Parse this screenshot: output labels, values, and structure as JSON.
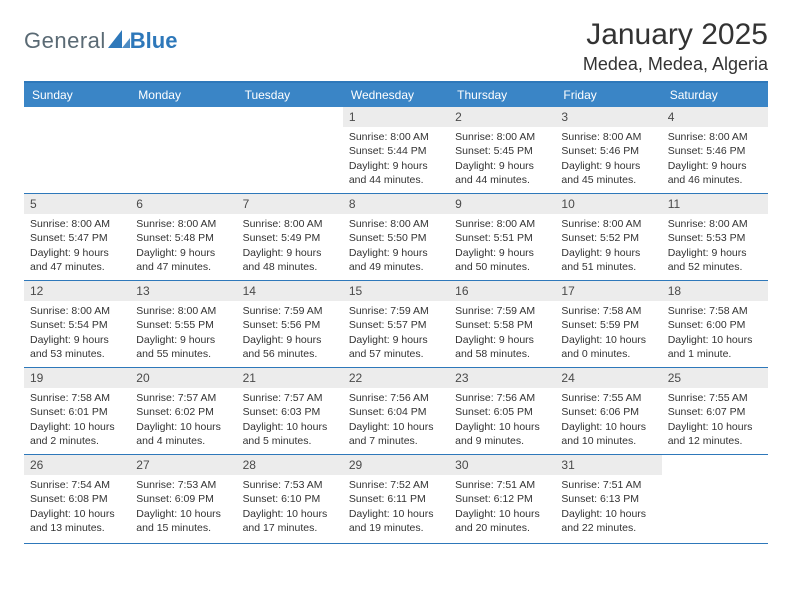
{
  "logo": {
    "general": "General",
    "blue": "Blue",
    "tri_color": "#2e78ba"
  },
  "title": {
    "month": "January 2025",
    "location": "Medea, Medea, Algeria"
  },
  "colors": {
    "header_bg": "#3a85c6",
    "header_border": "#2e78ba",
    "daynum_bg": "#ececec",
    "text": "#333333"
  },
  "weekdays": [
    "Sunday",
    "Monday",
    "Tuesday",
    "Wednesday",
    "Thursday",
    "Friday",
    "Saturday"
  ],
  "grid": {
    "first_weekday_index": 3,
    "num_days": 31
  },
  "days": {
    "1": {
      "sunrise": "8:00 AM",
      "sunset": "5:44 PM",
      "day_h": 9,
      "day_m": 44
    },
    "2": {
      "sunrise": "8:00 AM",
      "sunset": "5:45 PM",
      "day_h": 9,
      "day_m": 44
    },
    "3": {
      "sunrise": "8:00 AM",
      "sunset": "5:46 PM",
      "day_h": 9,
      "day_m": 45
    },
    "4": {
      "sunrise": "8:00 AM",
      "sunset": "5:46 PM",
      "day_h": 9,
      "day_m": 46
    },
    "5": {
      "sunrise": "8:00 AM",
      "sunset": "5:47 PM",
      "day_h": 9,
      "day_m": 47
    },
    "6": {
      "sunrise": "8:00 AM",
      "sunset": "5:48 PM",
      "day_h": 9,
      "day_m": 47
    },
    "7": {
      "sunrise": "8:00 AM",
      "sunset": "5:49 PM",
      "day_h": 9,
      "day_m": 48
    },
    "8": {
      "sunrise": "8:00 AM",
      "sunset": "5:50 PM",
      "day_h": 9,
      "day_m": 49
    },
    "9": {
      "sunrise": "8:00 AM",
      "sunset": "5:51 PM",
      "day_h": 9,
      "day_m": 50
    },
    "10": {
      "sunrise": "8:00 AM",
      "sunset": "5:52 PM",
      "day_h": 9,
      "day_m": 51
    },
    "11": {
      "sunrise": "8:00 AM",
      "sunset": "5:53 PM",
      "day_h": 9,
      "day_m": 52
    },
    "12": {
      "sunrise": "8:00 AM",
      "sunset": "5:54 PM",
      "day_h": 9,
      "day_m": 53
    },
    "13": {
      "sunrise": "8:00 AM",
      "sunset": "5:55 PM",
      "day_h": 9,
      "day_m": 55
    },
    "14": {
      "sunrise": "7:59 AM",
      "sunset": "5:56 PM",
      "day_h": 9,
      "day_m": 56
    },
    "15": {
      "sunrise": "7:59 AM",
      "sunset": "5:57 PM",
      "day_h": 9,
      "day_m": 57
    },
    "16": {
      "sunrise": "7:59 AM",
      "sunset": "5:58 PM",
      "day_h": 9,
      "day_m": 58
    },
    "17": {
      "sunrise": "7:58 AM",
      "sunset": "5:59 PM",
      "day_h": 10,
      "day_m": 0
    },
    "18": {
      "sunrise": "7:58 AM",
      "sunset": "6:00 PM",
      "day_h": 10,
      "day_m": 1
    },
    "19": {
      "sunrise": "7:58 AM",
      "sunset": "6:01 PM",
      "day_h": 10,
      "day_m": 2
    },
    "20": {
      "sunrise": "7:57 AM",
      "sunset": "6:02 PM",
      "day_h": 10,
      "day_m": 4
    },
    "21": {
      "sunrise": "7:57 AM",
      "sunset": "6:03 PM",
      "day_h": 10,
      "day_m": 5
    },
    "22": {
      "sunrise": "7:56 AM",
      "sunset": "6:04 PM",
      "day_h": 10,
      "day_m": 7
    },
    "23": {
      "sunrise": "7:56 AM",
      "sunset": "6:05 PM",
      "day_h": 10,
      "day_m": 9
    },
    "24": {
      "sunrise": "7:55 AM",
      "sunset": "6:06 PM",
      "day_h": 10,
      "day_m": 10
    },
    "25": {
      "sunrise": "7:55 AM",
      "sunset": "6:07 PM",
      "day_h": 10,
      "day_m": 12
    },
    "26": {
      "sunrise": "7:54 AM",
      "sunset": "6:08 PM",
      "day_h": 10,
      "day_m": 13
    },
    "27": {
      "sunrise": "7:53 AM",
      "sunset": "6:09 PM",
      "day_h": 10,
      "day_m": 15
    },
    "28": {
      "sunrise": "7:53 AM",
      "sunset": "6:10 PM",
      "day_h": 10,
      "day_m": 17
    },
    "29": {
      "sunrise": "7:52 AM",
      "sunset": "6:11 PM",
      "day_h": 10,
      "day_m": 19
    },
    "30": {
      "sunrise": "7:51 AM",
      "sunset": "6:12 PM",
      "day_h": 10,
      "day_m": 20
    },
    "31": {
      "sunrise": "7:51 AM",
      "sunset": "6:13 PM",
      "day_h": 10,
      "day_m": 22
    }
  },
  "labels": {
    "sunrise": "Sunrise:",
    "sunset": "Sunset:",
    "daylight": "Daylight:",
    "hours": "hours",
    "and": "and",
    "minute": "minute.",
    "minutes": "minutes."
  }
}
